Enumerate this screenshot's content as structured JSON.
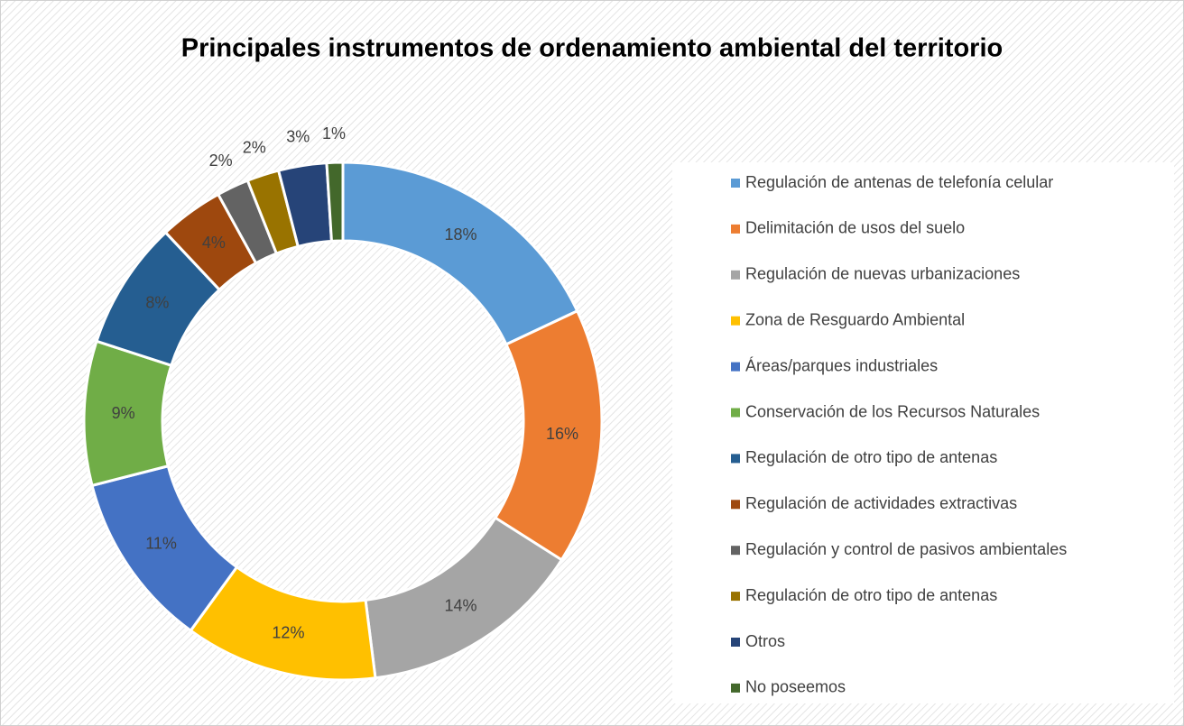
{
  "chart_data": {
    "type": "donut",
    "title": "Principales instrumentos de ordenamiento ambiental del territorio",
    "categories": [
      "Regulación de antenas de telefonía celular",
      "Delimitación de usos del suelo",
      "Regulación de nuevas urbanizaciones",
      "Zona de Resguardo Ambiental",
      "Áreas/parques industriales",
      "Conservación de los Recursos Naturales",
      "Regulación de otro tipo de antenas",
      "Regulación de actividades extractivas",
      "Regulación y control de pasivos ambientales",
      "Regulación de otro tipo de antenas",
      "Otros",
      "No poseemos"
    ],
    "values": [
      18,
      16,
      14,
      12,
      11,
      9,
      8,
      4,
      2,
      2,
      3,
      1
    ],
    "value_labels": [
      "18%",
      "16%",
      "14%",
      "12%",
      "11%",
      "9%",
      "8%",
      "4%",
      "2%",
      "2%",
      "3%",
      "1%"
    ],
    "colors": [
      "#5b9bd5",
      "#ed7d31",
      "#a5a5a5",
      "#ffc000",
      "#4472c4",
      "#70ad47",
      "#255e91",
      "#9e480e",
      "#636363",
      "#997300",
      "#264478",
      "#43682b"
    ],
    "legend": "right"
  }
}
